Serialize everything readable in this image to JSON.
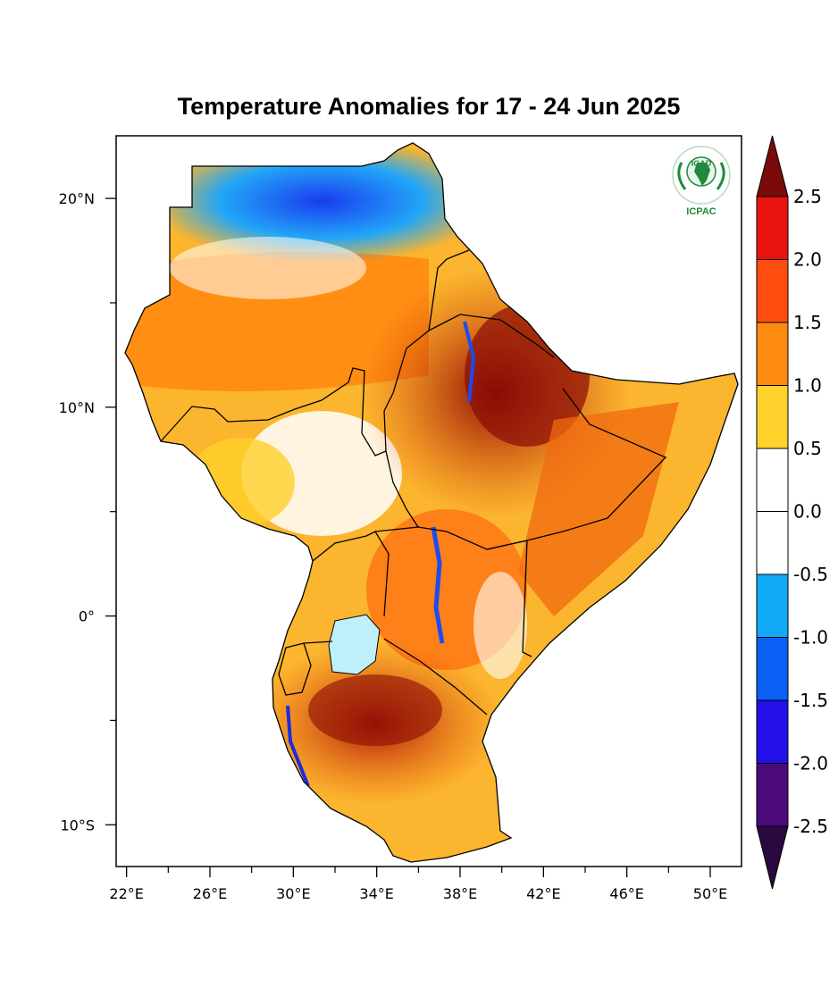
{
  "title": "Temperature Anomalies for 17 - 24 Jun 2025",
  "logo": {
    "org": "IGAD",
    "center": "ICPAC",
    "color": "#1f8a3b"
  },
  "map": {
    "projection": "lon-lat",
    "lon_range": [
      21.5,
      51.5
    ],
    "lat_range": [
      -12,
      23
    ],
    "lon_ticks": [
      {
        "value": 22,
        "label": "22°E"
      },
      {
        "value": 26,
        "label": "26°E"
      },
      {
        "value": 30,
        "label": "30°E"
      },
      {
        "value": 34,
        "label": "34°E"
      },
      {
        "value": 38,
        "label": "38°E"
      },
      {
        "value": 42,
        "label": "42°E"
      },
      {
        "value": 46,
        "label": "46°E"
      },
      {
        "value": 50,
        "label": "50°E"
      }
    ],
    "lon_minor_ticks": [
      24,
      28,
      32,
      36,
      40,
      44,
      48
    ],
    "lat_ticks": [
      {
        "value": 20,
        "label": "20°N"
      },
      {
        "value": 10,
        "label": "10°N"
      },
      {
        "value": 0,
        "label": "0°"
      },
      {
        "value": -10,
        "label": "10°S"
      }
    ],
    "lat_minor_ticks": [
      15,
      5,
      -5
    ]
  },
  "colorbar": {
    "orientation": "vertical",
    "labels": [
      "2.5",
      "2.0",
      "1.5",
      "1.0",
      "0.5",
      "0.0",
      "-0.5",
      "-1.0",
      "-1.5",
      "-2.0",
      "-2.5"
    ],
    "over_color": "#7a0a0a",
    "under_color": "#2a0840",
    "colors": [
      "#e8130f",
      "#ff4d0f",
      "#ff8a10",
      "#ffd12a",
      "#ffffff",
      "#ffffff",
      "#11aaf7",
      "#0a5ff5",
      "#2410e8",
      "#4a0a78"
    ]
  }
}
